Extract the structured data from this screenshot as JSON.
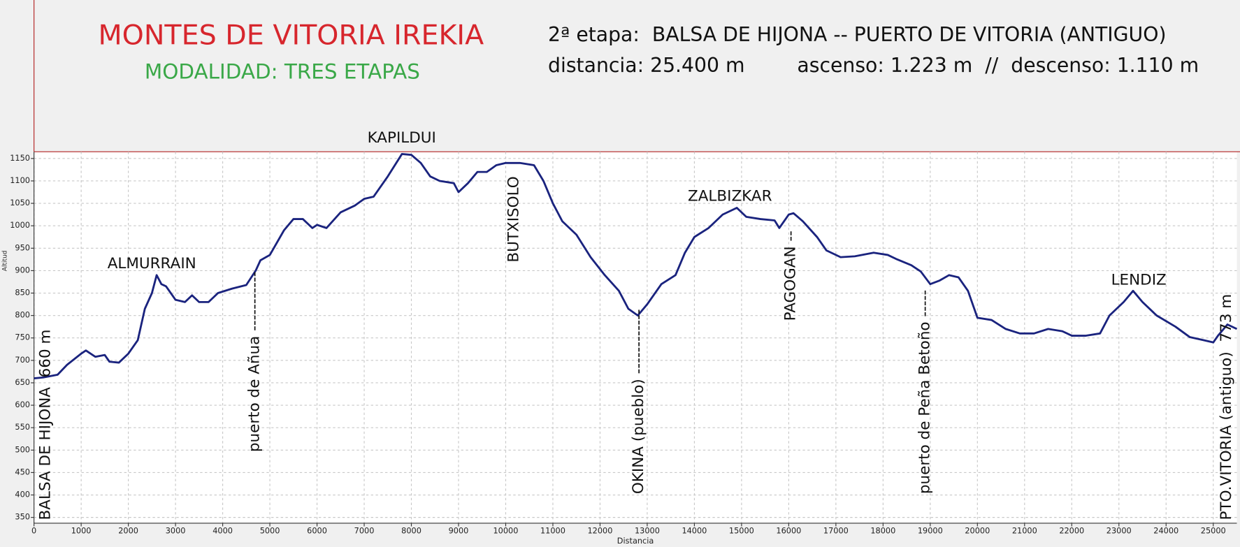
{
  "chart_data": {
    "type": "line",
    "title": "MONTES DE VITORIA IREKIA",
    "subtitle": "MODALIDAD: TRES ETAPAS",
    "stage": "2ª etapa:  BALSA DE HIJONA -- PUERTO DE VITORIA (ANTIGUO)",
    "distance": "distancia: 25.400 m",
    "elevation": "ascenso: 1.223 m  //  descenso: 1.110 m",
    "xlabel": "Distancia",
    "ylabel": "Altitud",
    "color": "#1a237e",
    "grid": true,
    "xlim": [
      0,
      25500
    ],
    "ylim": [
      337,
      1165
    ],
    "xticks": [
      0,
      1000,
      2000,
      3000,
      4000,
      5000,
      6000,
      7000,
      8000,
      9000,
      10000,
      11000,
      12000,
      13000,
      14000,
      15000,
      16000,
      17000,
      18000,
      19000,
      20000,
      21000,
      22000,
      23000,
      24000,
      25000
    ],
    "yticks": [
      350,
      400,
      450,
      500,
      550,
      600,
      650,
      700,
      750,
      800,
      850,
      900,
      950,
      1000,
      1050,
      1100,
      1150
    ],
    "x": [
      0,
      200,
      500,
      700,
      1000,
      1100,
      1300,
      1500,
      1600,
      1800,
      2000,
      2200,
      2350,
      2500,
      2600,
      2700,
      2800,
      3000,
      3200,
      3350,
      3500,
      3700,
      3900,
      4200,
      4500,
      4700,
      4800,
      5000,
      5300,
      5500,
      5700,
      5900,
      6000,
      6200,
      6500,
      6800,
      7000,
      7200,
      7500,
      7800,
      8000,
      8200,
      8400,
      8600,
      8900,
      9000,
      9200,
      9400,
      9600,
      9800,
      10000,
      10300,
      10600,
      10800,
      11000,
      11200,
      11500,
      11800,
      12100,
      12400,
      12600,
      12800,
      13000,
      13300,
      13600,
      13800,
      14000,
      14300,
      14600,
      14900,
      15100,
      15400,
      15700,
      15800,
      16000,
      16100,
      16300,
      16600,
      16800,
      17100,
      17400,
      17800,
      18100,
      18300,
      18600,
      18800,
      19000,
      19200,
      19400,
      19600,
      19800,
      20000,
      20300,
      20600,
      20900,
      21200,
      21500,
      21800,
      22000,
      22300,
      22600,
      22800,
      23100,
      23300,
      23500,
      23800,
      24200,
      24500,
      24800,
      25000,
      25100,
      25300,
      25500
    ],
    "values": [
      660,
      662,
      668,
      690,
      715,
      722,
      708,
      712,
      697,
      695,
      715,
      745,
      815,
      850,
      890,
      870,
      865,
      835,
      830,
      845,
      830,
      830,
      850,
      860,
      868,
      900,
      923,
      935,
      990,
      1015,
      1015,
      995,
      1002,
      995,
      1030,
      1045,
      1060,
      1065,
      1110,
      1160,
      1158,
      1140,
      1110,
      1100,
      1095,
      1075,
      1095,
      1120,
      1120,
      1135,
      1140,
      1140,
      1135,
      1100,
      1050,
      1010,
      980,
      930,
      890,
      855,
      815,
      800,
      825,
      870,
      890,
      940,
      975,
      995,
      1025,
      1040,
      1020,
      1015,
      1012,
      995,
      1025,
      1028,
      1010,
      975,
      945,
      930,
      932,
      940,
      935,
      925,
      912,
      898,
      870,
      878,
      890,
      885,
      855,
      795,
      790,
      770,
      760,
      760,
      770,
      765,
      755,
      755,
      760,
      800,
      830,
      855,
      830,
      800,
      775,
      752,
      745,
      740,
      755,
      780,
      770
    ],
    "annotations": [
      "KAPILDUI",
      "ALMURRAIN",
      "ZALBIZKAR",
      "LENDIZ",
      "BALSA DE HIJONA  660 m",
      "puerto de Añua -----------",
      "BUTXISOLO",
      "OKINA (pueblo) ------------",
      "PAGOGAN --",
      "puerto de Peña Betoño -----",
      "PTO.VITORIA (antiguo)  773 m"
    ]
  }
}
